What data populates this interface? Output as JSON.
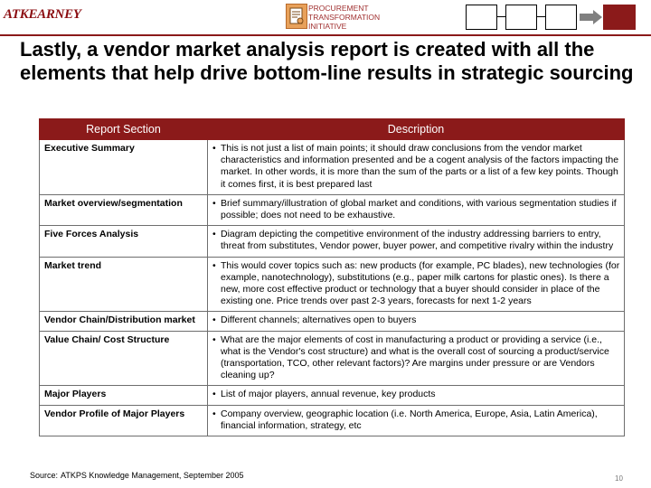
{
  "header": {
    "logo_text": "ATKEARNEY",
    "program_label_lines": [
      "PROCUREMENT",
      "TRANSFORMATION",
      "INITIATIVE"
    ],
    "nav_steps_count": 4,
    "nav_active_step": 4,
    "accent_color": "#8b1a1a"
  },
  "title": "Lastly, a vendor market analysis report is created with all the elements that help drive bottom-line results in strategic sourcing",
  "table": {
    "headers": [
      "Report Section",
      "Description"
    ],
    "rows": [
      {
        "section": "Executive Summary",
        "description": "This is not just a list of main points; it should draw conclusions from the vendor market characteristics and information presented and be a cogent analysis of the factors impacting the market. In other words, it is more than the sum of the parts or a list of a few key points.  Though it comes first, it is best prepared last"
      },
      {
        "section": "Market overview/segmentation",
        "description": "Brief summary/illustration of global market and conditions, with various segmentation studies if possible; does not need to be exhaustive."
      },
      {
        "section": "Five Forces Analysis",
        "description": "Diagram depicting the competitive environment of the industry addressing barriers to entry, threat from substitutes, Vendor power, buyer power, and competitive rivalry within the industry"
      },
      {
        "section": "Market trend",
        "description": "This would cover topics such as: new products (for example, PC blades), new technologies (for example, nanotechnology), substitutions (e.g., paper milk cartons for plastic ones). Is there a new, more cost effective product or technology that a buyer should consider in place of the existing one. Price trends over past 2-3 years, forecasts for next 1-2 years"
      },
      {
        "section": "Vendor Chain/Distribution market",
        "description": "Different channels; alternatives open to buyers"
      },
      {
        "section": "Value Chain/ Cost Structure",
        "description": "What are the major elements of cost in manufacturing a product or providing a service (i.e., what is the Vendor's cost structure) and what is the overall cost of sourcing a product/service (transportation, TCO, other relevant factors)? Are margins under pressure or are Vendors cleaning up?"
      },
      {
        "section": "Major Players",
        "description": "List of major players, annual revenue, key products"
      },
      {
        "section": "Vendor Profile of Major Players",
        "description": "Company overview, geographic location (i.e. North America, Europe, Asia, Latin America), financial information, strategy, etc"
      }
    ]
  },
  "footer": {
    "source_label": "Source:",
    "source_text": "ATKPS Knowledge Management, September 2005",
    "page_number": "10"
  }
}
